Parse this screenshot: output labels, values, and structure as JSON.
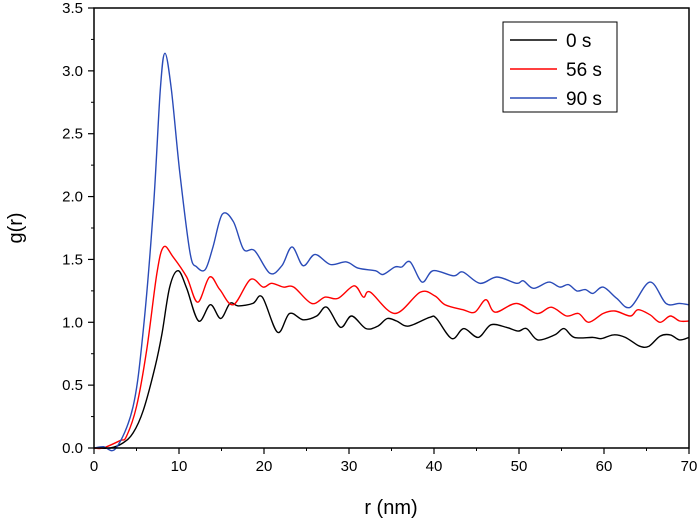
{
  "chart_data": {
    "type": "line",
    "title": "",
    "xlabel": "r (nm)",
    "ylabel": "g(r)",
    "xlim": [
      0,
      70
    ],
    "ylim": [
      0,
      3.5
    ],
    "xticks": [
      0,
      10,
      20,
      30,
      40,
      50,
      60,
      70
    ],
    "yticks": [
      "0.0",
      "0.5",
      "1.0",
      "1.5",
      "2.0",
      "2.5",
      "3.0",
      "3.5"
    ],
    "grid": false,
    "legend_position": "top-right",
    "series": [
      {
        "name": "0 s",
        "color": "#000000",
        "x": [
          0,
          1.9,
          3.4,
          4.6,
          5.8,
          7.2,
          8.0,
          8.9,
          9.9,
          10.9,
          12.3,
          13.7,
          14.9,
          16.0,
          17.0,
          18.7,
          19.8,
          21.6,
          23.0,
          24.6,
          26.2,
          27.4,
          29.0,
          30.3,
          32.0,
          33.4,
          34.5,
          35.6,
          37.0,
          39.5,
          40.3,
          42.1,
          43.5,
          45.2,
          46.7,
          48.5,
          49.9,
          50.9,
          52.2,
          54.2,
          55.3,
          56.5,
          58.7,
          59.7,
          61.1,
          62.5,
          64.2,
          65.3,
          66.6,
          67.8,
          68.9,
          70
        ],
        "y": [
          0,
          0,
          0.04,
          0.12,
          0.3,
          0.65,
          0.91,
          1.28,
          1.41,
          1.27,
          1.01,
          1.14,
          1.03,
          1.15,
          1.13,
          1.15,
          1.2,
          0.92,
          1.07,
          1.02,
          1.05,
          1.12,
          0.96,
          1.05,
          0.95,
          0.97,
          1.03,
          1.01,
          0.97,
          1.04,
          1.03,
          0.87,
          0.95,
          0.88,
          0.98,
          0.96,
          0.93,
          0.95,
          0.86,
          0.9,
          0.95,
          0.88,
          0.88,
          0.87,
          0.9,
          0.88,
          0.81,
          0.81,
          0.89,
          0.9,
          0.86,
          0.88
        ]
      },
      {
        "name": "56 s",
        "color": "#ff0000",
        "x": [
          0,
          1.1,
          3.1,
          3.8,
          5.0,
          6.2,
          7.4,
          8.2,
          9.3,
          10.9,
          12.2,
          13.6,
          14.8,
          16.4,
          18.4,
          19.9,
          20.9,
          22.3,
          23.5,
          25.6,
          27.2,
          28.7,
          30.6,
          31.7,
          32.5,
          35.4,
          38.4,
          40.1,
          41.3,
          43.4,
          44.8,
          46.1,
          47.2,
          49.7,
          52.1,
          53.8,
          55.6,
          57.0,
          58.2,
          59.9,
          61.3,
          63.1,
          64.0,
          65.4,
          66.6,
          67.8,
          68.9,
          70
        ],
        "y": [
          0,
          0,
          0.06,
          0.09,
          0.33,
          0.78,
          1.39,
          1.6,
          1.52,
          1.36,
          1.16,
          1.36,
          1.26,
          1.14,
          1.34,
          1.28,
          1.31,
          1.28,
          1.28,
          1.15,
          1.2,
          1.19,
          1.29,
          1.2,
          1.24,
          1.07,
          1.24,
          1.21,
          1.14,
          1.1,
          1.08,
          1.18,
          1.08,
          1.15,
          1.07,
          1.12,
          1.05,
          1.07,
          1.0,
          1.07,
          1.09,
          1.05,
          1.1,
          1.06,
          1.0,
          1.05,
          1.01,
          1.01
        ]
      },
      {
        "name": "90 s",
        "color": "#2a4bb8",
        "x": [
          0,
          1.1,
          2.6,
          4.6,
          5.8,
          7.0,
          7.8,
          8.35,
          9.1,
          10.1,
          11.3,
          12.1,
          13.1,
          14.0,
          15.1,
          16.4,
          17.6,
          18.9,
          20.7,
          22.1,
          23.3,
          24.6,
          26.0,
          27.8,
          29.7,
          31.1,
          33.1,
          34.0,
          35.4,
          36.2,
          37.2,
          38.6,
          39.9,
          42.3,
          43.4,
          45.4,
          47.4,
          49.7,
          50.5,
          51.7,
          53.5,
          54.8,
          55.8,
          56.8,
          57.8,
          58.7,
          59.9,
          61.5,
          63.1,
          65.4,
          67.3,
          68.9,
          70
        ],
        "y": [
          0,
          0.01,
          0,
          0.33,
          0.94,
          1.92,
          2.85,
          3.14,
          2.85,
          2.19,
          1.55,
          1.44,
          1.42,
          1.6,
          1.86,
          1.8,
          1.58,
          1.57,
          1.39,
          1.45,
          1.6,
          1.45,
          1.54,
          1.46,
          1.48,
          1.43,
          1.41,
          1.38,
          1.44,
          1.44,
          1.48,
          1.32,
          1.41,
          1.37,
          1.4,
          1.31,
          1.36,
          1.31,
          1.33,
          1.27,
          1.32,
          1.28,
          1.3,
          1.25,
          1.26,
          1.23,
          1.28,
          1.19,
          1.12,
          1.32,
          1.15,
          1.15,
          1.14
        ]
      }
    ]
  }
}
